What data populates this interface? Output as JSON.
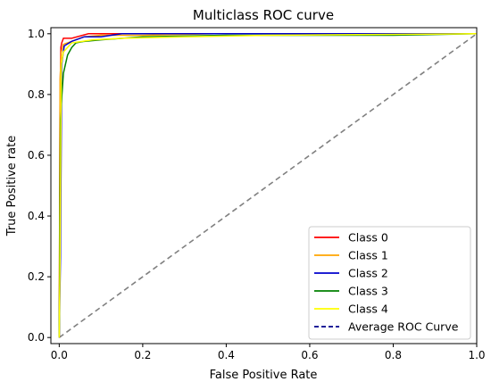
{
  "chart_data": {
    "type": "line",
    "title": "Multiclass ROC curve",
    "xlabel": "False Positive Rate",
    "ylabel": "True Positive rate",
    "xlim": [
      -0.02,
      1.0
    ],
    "ylim": [
      -0.02,
      1.02
    ],
    "xticks": [
      0.0,
      0.2,
      0.4,
      0.6,
      0.8,
      1.0
    ],
    "xtick_labels": [
      "0.0",
      "0.2",
      "0.4",
      "0.6",
      "0.8",
      "1.0"
    ],
    "yticks": [
      0.0,
      0.2,
      0.4,
      0.6,
      0.8,
      1.0
    ],
    "ytick_labels": [
      "0.0",
      "0.2",
      "0.4",
      "0.6",
      "0.8",
      "1.0"
    ],
    "grid": false,
    "legend_position": "bottom-right",
    "series": [
      {
        "name": "Class 0",
        "color": "#ff0000",
        "style": "solid",
        "x": [
          0.0,
          0.002,
          0.004,
          0.006,
          0.01,
          0.03,
          0.07,
          0.12,
          0.2,
          0.35,
          0.5,
          1.0
        ],
        "y": [
          0.0,
          0.8,
          0.955,
          0.97,
          0.985,
          0.985,
          1.0,
          1.0,
          1.0,
          1.0,
          1.0,
          1.0
        ]
      },
      {
        "name": "Class 1",
        "color": "#ffa500",
        "style": "solid",
        "x": [
          0.0,
          0.002,
          0.005,
          0.01,
          0.03,
          0.06,
          0.1,
          0.2,
          0.3,
          0.37,
          0.5,
          1.0
        ],
        "y": [
          0.0,
          0.85,
          0.94,
          0.965,
          0.975,
          0.99,
          0.995,
          0.995,
          0.998,
          1.0,
          1.0,
          1.0
        ]
      },
      {
        "name": "Class 2",
        "color": "#0000cd",
        "style": "solid",
        "x": [
          0.0,
          0.003,
          0.006,
          0.012,
          0.03,
          0.06,
          0.1,
          0.15,
          0.3,
          1.0
        ],
        "y": [
          0.0,
          0.27,
          0.9,
          0.96,
          0.975,
          0.99,
          0.99,
          1.0,
          1.0,
          1.0
        ]
      },
      {
        "name": "Class 3",
        "color": "#008000",
        "style": "solid",
        "x": [
          0.0,
          0.003,
          0.006,
          0.01,
          0.015,
          0.02,
          0.03,
          0.04,
          0.06,
          0.1,
          0.2,
          0.4,
          0.6,
          0.8,
          1.0
        ],
        "y": [
          0.0,
          0.72,
          0.79,
          0.87,
          0.9,
          0.93,
          0.955,
          0.97,
          0.975,
          0.98,
          0.99,
          0.995,
          0.995,
          0.995,
          1.0
        ]
      },
      {
        "name": "Class 4",
        "color": "#ffff00",
        "style": "solid",
        "x": [
          0.0,
          0.002,
          0.005,
          0.01,
          0.03,
          0.08,
          0.15,
          0.3,
          0.5,
          0.8,
          1.0
        ],
        "y": [
          0.0,
          0.27,
          0.9,
          0.94,
          0.97,
          0.98,
          0.985,
          0.99,
          0.995,
          0.998,
          1.0
        ]
      },
      {
        "name": "Average ROC Curve",
        "color": "#00008b",
        "style": "dashed",
        "x": [],
        "y": []
      }
    ],
    "reference_line": {
      "color": "#808080",
      "style": "dashed",
      "x": [
        0.0,
        1.0
      ],
      "y": [
        0.0,
        1.0
      ]
    }
  }
}
